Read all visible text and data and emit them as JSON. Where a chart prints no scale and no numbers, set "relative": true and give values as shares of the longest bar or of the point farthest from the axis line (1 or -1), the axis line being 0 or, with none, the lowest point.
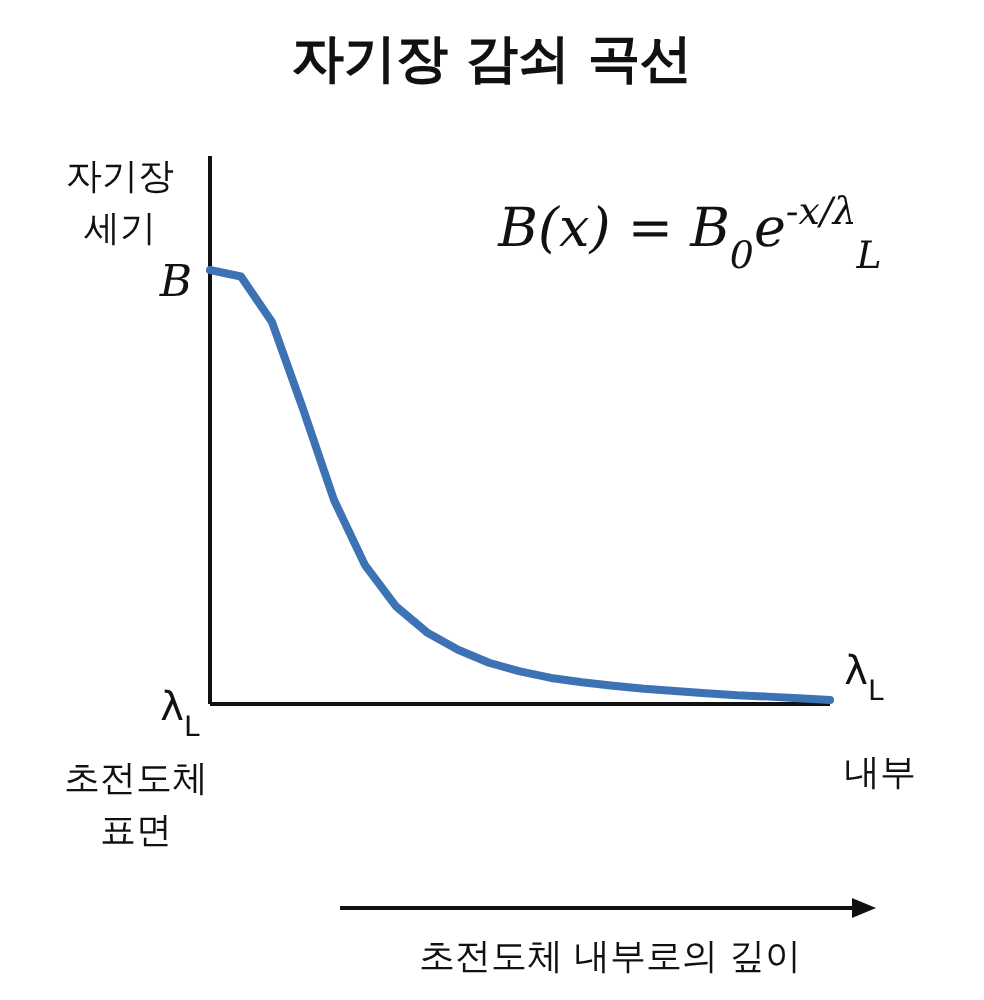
{
  "chart_data": {
    "type": "line",
    "relative": true,
    "title": "자기장 감쇠 곡선",
    "ylabel": "자기장 세기",
    "categories": [
      null,
      null,
      null,
      null,
      null,
      null,
      null,
      null,
      null,
      null,
      null,
      null,
      null,
      null,
      null,
      null,
      null,
      null,
      null,
      null,
      null
    ],
    "series": [
      {
        "color": "#3d72b4",
        "values": [
          1,
          0.985,
          0.88,
          0.68,
          0.47,
          0.32,
          0.225,
          0.165,
          0.125,
          0.095,
          0.075,
          0.06,
          0.05,
          0.042,
          0.035,
          0.03,
          0.025,
          0.02,
          0.017,
          0.013,
          0.009
        ]
      }
    ],
    "annotations": [
      "B(x) = B$_{0}$e$^{-x/λ}$$_{L}$",
      "B",
      "λ$_{L}$",
      "λ$_{L}$",
      "초전도체 표면",
      "내부",
      "초전도체 내부로의 깊이"
    ],
    "grid": false,
    "marker": "none",
    "line_style": "solid"
  }
}
